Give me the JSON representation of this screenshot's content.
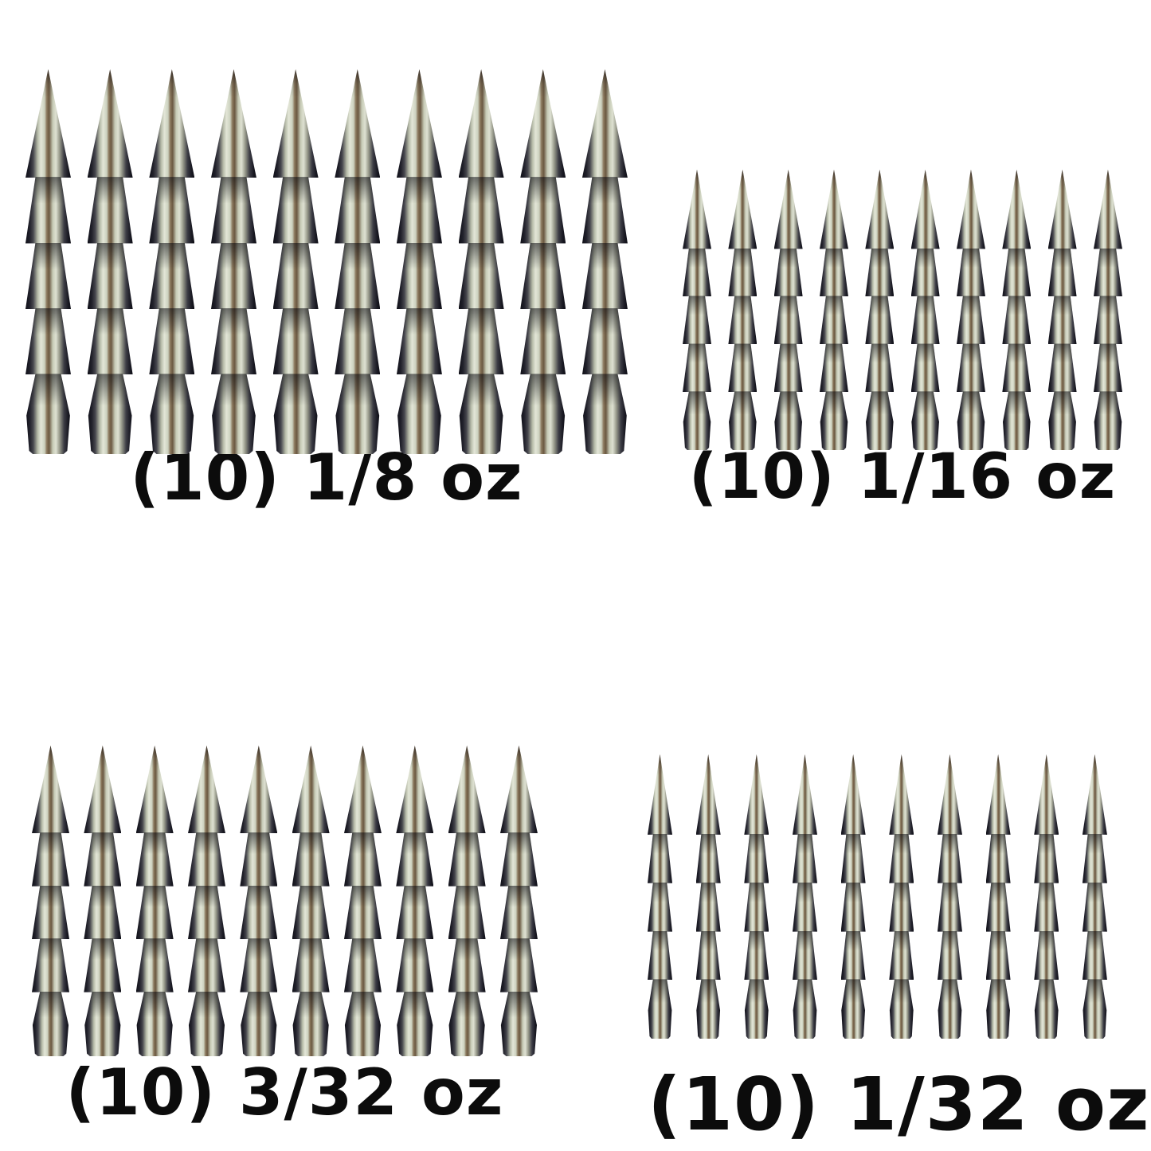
{
  "page": {
    "background_color": "#ffffff",
    "description": "Product photo: four assortments of segmented pagoda-style nail weight fishing sinkers arranged in rows on a white background, each row captioned with quantity and weight"
  },
  "product": {
    "item": "nail-weight-sinker",
    "segments_per_sinker": 5,
    "colors": {
      "metal_edge_dark": "#111119",
      "metal_shadow": "#3b3b44",
      "metal_highlight": "#e3e6d7",
      "metal_brown_streak": "#6b5942",
      "label_text": "#0c0c0c"
    }
  },
  "groups": [
    {
      "position": "top-left",
      "count": 10,
      "quantity": "(10)",
      "weight": "1/8 oz",
      "label": "(10) 1/8 oz"
    },
    {
      "position": "top-right",
      "count": 10,
      "quantity": "(10)",
      "weight": "1/16 oz",
      "label": "(10) 1/16 oz"
    },
    {
      "position": "bottom-left",
      "count": 10,
      "quantity": "(10)",
      "weight": "3/32 oz",
      "label": "(10) 3/32 oz"
    },
    {
      "position": "bottom-right",
      "count": 10,
      "quantity": "(10)",
      "weight": "1/32 oz",
      "label": "(10) 1/32 oz"
    }
  ]
}
